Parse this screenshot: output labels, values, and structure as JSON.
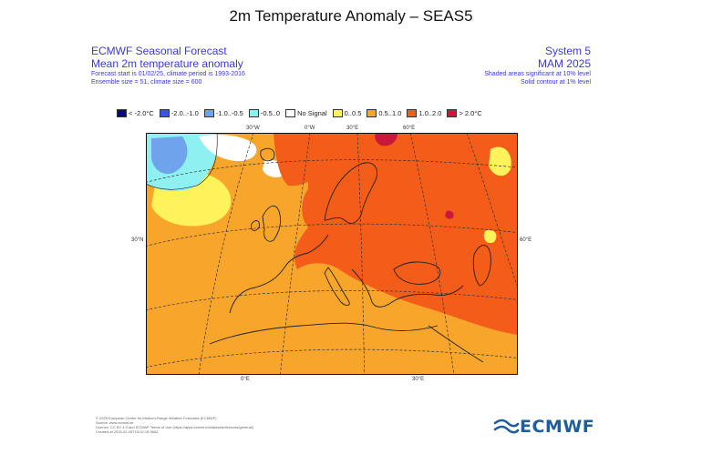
{
  "title": "2m Temperature Anomaly – SEAS5",
  "header": {
    "left": {
      "line1": "ECMWF Seasonal Forecast",
      "line2": "Mean 2m temperature anomaly",
      "line3": "Forecast start is 01/02/25, climate period is 1993-2016",
      "line4": "Ensemble size = 51, climate size = 600"
    },
    "right": {
      "line1": "System 5",
      "line2": "MAM 2025",
      "line3": "Shaded areas significant at 10% level",
      "line4": "Solid contour at 1% level"
    }
  },
  "legend": [
    {
      "label": "< -2.0°C",
      "color": "#0a0a7a"
    },
    {
      "label": "-2.0..-1.0",
      "color": "#3a55e0"
    },
    {
      "label": "-1.0..-0.5",
      "color": "#6fa3ec"
    },
    {
      "label": "-0.5..0",
      "color": "#8ff0f2"
    },
    {
      "label": "No Signal",
      "color": "#ffffff"
    },
    {
      "label": "0..0.5",
      "color": "#fff25a"
    },
    {
      "label": "0.5..1.0",
      "color": "#f8a52b"
    },
    {
      "label": "1.0..2.0",
      "color": "#f45c1a"
    },
    {
      "label": "> 2.0°C",
      "color": "#c8183c"
    }
  ],
  "coords": {
    "lon_top_30w": "30°W",
    "lon_top_0": "0°W",
    "lon_top_30e": "30°E",
    "lon_top_60e": "60°E",
    "lat_left": "30°N",
    "lat_right": "60°E",
    "lon_bottom_0": "0°E",
    "lon_bottom_30e": "30°E"
  },
  "footer": {
    "line1": "© 2025 European Centre for Medium-Range Weather Forecasts (ECMWF)",
    "line2": "Source: www.ecmwf.int",
    "line3": "Licence: CC BY 4.0 and ECMWF Terms of Use (https://apps.ecmwf.int/datasets/licences/general/)",
    "line4": "Created at 2025-02-09T15:02:19.966Z"
  },
  "logo": {
    "text": "ECMWF",
    "icon": "ecmwf-wave-icon",
    "color": "#1f5e9a"
  }
}
